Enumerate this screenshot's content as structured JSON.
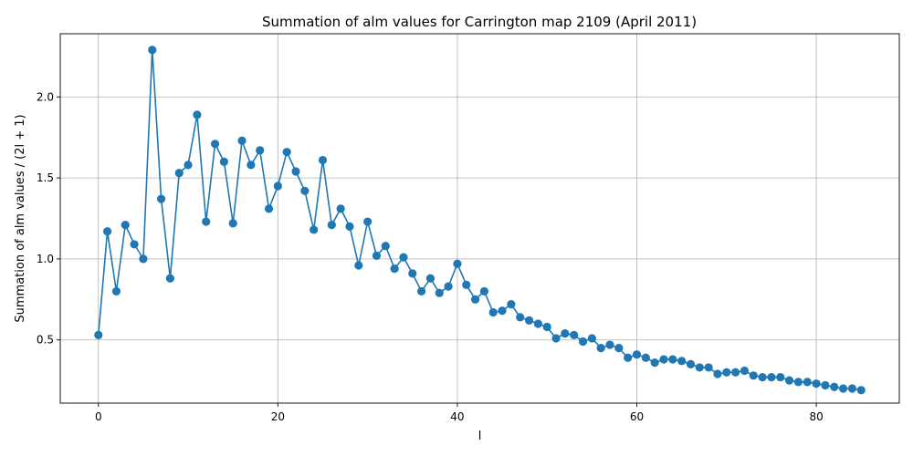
{
  "chart_data": {
    "type": "line",
    "title": "Summation of alm values for Carrington map 2109 (April 2011)",
    "xlabel": "l",
    "ylabel": "Summation of alm values / (2l + 1)",
    "xlim": [
      -4.25,
      89.25
    ],
    "ylim": [
      0.11,
      2.39
    ],
    "xticks": [
      0,
      20,
      40,
      60,
      80
    ],
    "yticks": [
      0.5,
      1.0,
      1.5,
      2.0
    ],
    "ytick_labels": [
      "0.5",
      "1.0",
      "1.5",
      "2.0"
    ],
    "grid": true,
    "marker": "circle",
    "color": "#1f77b4",
    "x": [
      0,
      1,
      2,
      3,
      4,
      5,
      6,
      7,
      8,
      9,
      10,
      11,
      12,
      13,
      14,
      15,
      16,
      17,
      18,
      19,
      20,
      21,
      22,
      23,
      24,
      25,
      26,
      27,
      28,
      29,
      30,
      31,
      32,
      33,
      34,
      35,
      36,
      37,
      38,
      39,
      40,
      41,
      42,
      43,
      44,
      45,
      46,
      47,
      48,
      49,
      50,
      51,
      52,
      53,
      54,
      55,
      56,
      57,
      58,
      59,
      60,
      61,
      62,
      63,
      64,
      65,
      66,
      67,
      68,
      69,
      70,
      71,
      72,
      73,
      74,
      75,
      76,
      77,
      78,
      79,
      80,
      81,
      82,
      83,
      84,
      85
    ],
    "y": [
      0.53,
      1.17,
      0.8,
      1.21,
      1.09,
      1.0,
      2.29,
      1.37,
      0.88,
      1.53,
      1.58,
      1.89,
      1.23,
      1.71,
      1.6,
      1.22,
      1.73,
      1.58,
      1.67,
      1.31,
      1.45,
      1.66,
      1.54,
      1.42,
      1.18,
      1.61,
      1.21,
      1.31,
      1.2,
      0.96,
      1.23,
      1.02,
      1.08,
      0.94,
      1.01,
      0.91,
      0.8,
      0.88,
      0.79,
      0.83,
      0.97,
      0.84,
      0.75,
      0.8,
      0.67,
      0.68,
      0.72,
      0.64,
      0.62,
      0.6,
      0.58,
      0.51,
      0.54,
      0.53,
      0.49,
      0.51,
      0.45,
      0.47,
      0.45,
      0.39,
      0.41,
      0.39,
      0.36,
      0.38,
      0.38,
      0.37,
      0.35,
      0.33,
      0.33,
      0.29,
      0.3,
      0.3,
      0.31,
      0.28,
      0.27,
      0.27,
      0.27,
      0.25,
      0.24,
      0.24,
      0.23,
      0.22,
      0.21,
      0.2,
      0.2,
      0.19
    ]
  }
}
